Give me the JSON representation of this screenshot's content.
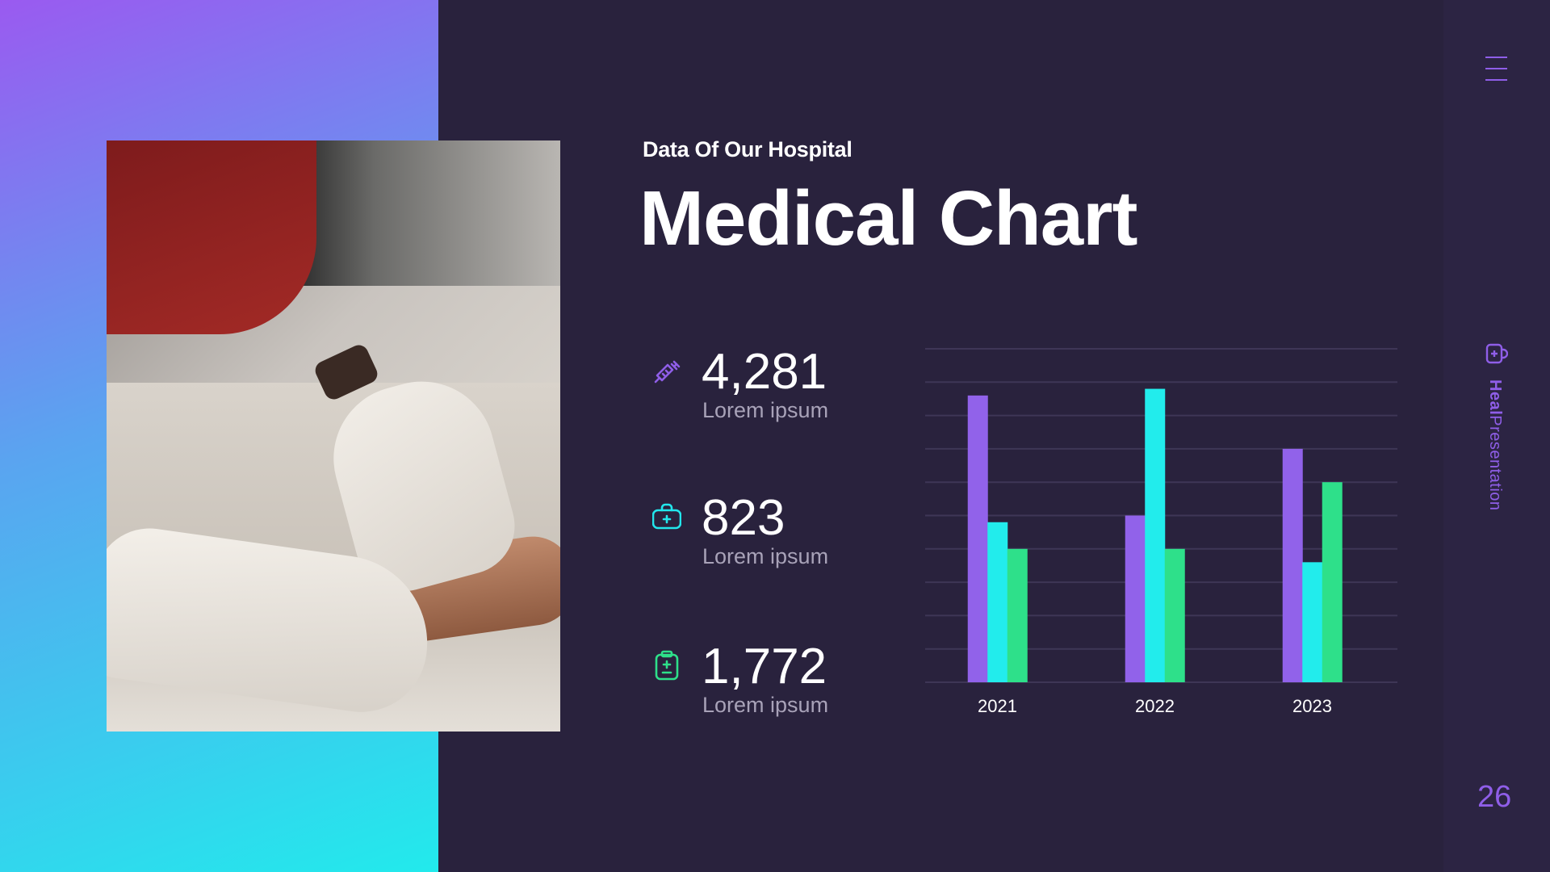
{
  "header": {
    "subtitle": "Data Of Our Hospital",
    "title": "Medical Chart"
  },
  "stats": [
    {
      "value": "4,281",
      "label": "Lorem ipsum",
      "icon": "syringe-icon",
      "color": "#8f5ee8"
    },
    {
      "value": "823",
      "label": "Lorem ipsum",
      "icon": "medical-kit-icon",
      "color": "#22e6ec"
    },
    {
      "value": "1,772",
      "label": "Lorem ipsum",
      "icon": "clipboard-plus-minus-icon",
      "color": "#2ee08a"
    }
  ],
  "sidebar": {
    "brand_bold": "Heal",
    "brand_rest": "Presentation",
    "page_number": "26",
    "menu_icon": "hamburger-menu-icon",
    "brand_icon": "medical-mug-icon"
  },
  "colors": {
    "background": "#29223d",
    "accent_purple": "#9162ea",
    "accent_cyan": "#22ecec",
    "accent_green": "#2ee08a"
  },
  "chart_data": {
    "type": "bar",
    "categories": [
      "2021",
      "2022",
      "2023"
    ],
    "series": [
      {
        "values": [
          8.6,
          5,
          7
        ],
        "color": "#9162ea"
      },
      {
        "values": [
          4.8,
          8.8,
          3.6
        ],
        "color": "#22ecec"
      },
      {
        "values": [
          4,
          4,
          6
        ],
        "color": "#2ee08a"
      }
    ],
    "ylim": [
      0,
      10
    ],
    "grid": true,
    "legend": "none",
    "xlabel": "",
    "ylabel": ""
  }
}
